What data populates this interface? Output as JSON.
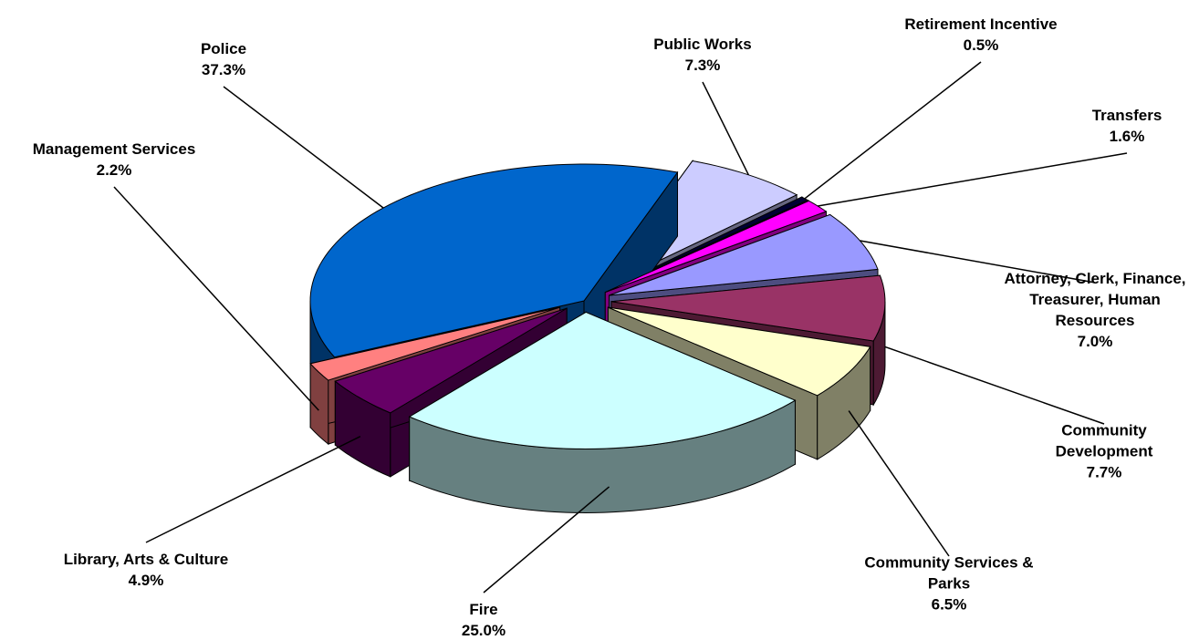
{
  "chart_data": {
    "type": "pie",
    "categories": [
      "Police",
      "Public Works",
      "Retirement Incentive",
      "Transfers",
      "Attorney, Clerk, Finance, Treasurer, Human Resources",
      "Community Development",
      "Community Services & Parks",
      "Fire",
      "Library, Arts & Culture",
      "Management Services"
    ],
    "values": [
      37.3,
      7.3,
      0.5,
      1.6,
      7.0,
      7.7,
      6.5,
      25.0,
      4.9,
      2.2
    ],
    "value_labels": [
      "37.3%",
      "7.3%",
      "0.5%",
      "1.6%",
      "7.0%",
      "7.7%",
      "6.5%",
      "25.0%",
      "4.9%",
      "2.2%"
    ],
    "colors": [
      "#0066CC",
      "#CCCCFF",
      "#000033",
      "#FF00FF",
      "#9999FF",
      "#993366",
      "#FFFFCC",
      "#CCFFFF",
      "#660066",
      "#FF8080"
    ]
  }
}
